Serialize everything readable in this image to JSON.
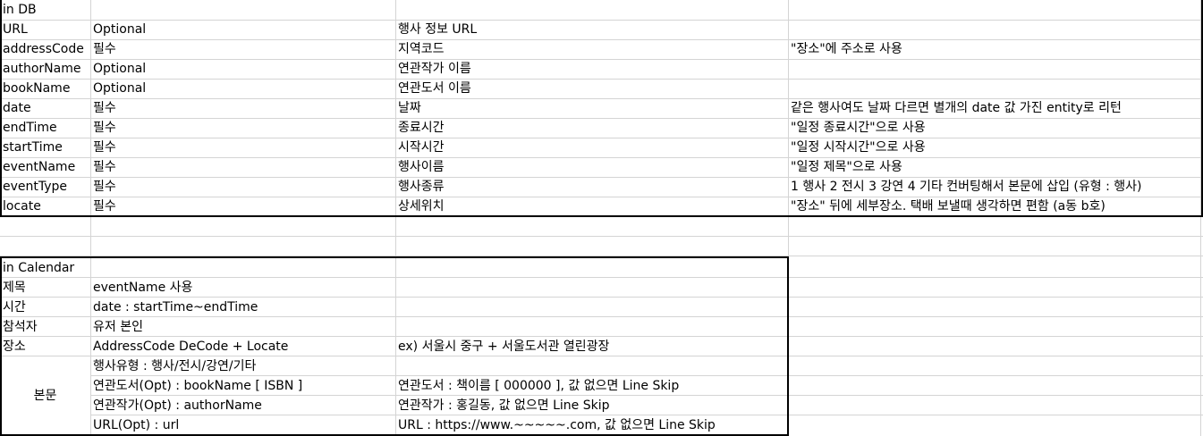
{
  "db_table": {
    "header": "in DB",
    "rows": [
      {
        "field": "URL",
        "required": "Optional",
        "desc": "행사 정보 URL",
        "note": ""
      },
      {
        "field": "addressCode",
        "required": "필수",
        "desc": "지역코드",
        "note": "\"장소\"에 주소로 사용"
      },
      {
        "field": "authorName",
        "required": "Optional",
        "desc": "연관작가 이름",
        "note": ""
      },
      {
        "field": "bookName",
        "required": "Optional",
        "desc": "연관도서 이름",
        "note": ""
      },
      {
        "field": "date",
        "required": "필수",
        "desc": "날짜",
        "note": "같은 행사여도 날짜 다르면 별개의 date 값 가진 entity로 리턴"
      },
      {
        "field": "endTime",
        "required": "필수",
        "desc": "종료시간",
        "note": "\"일정 종료시간\"으로 사용"
      },
      {
        "field": "startTime",
        "required": "필수",
        "desc": "시작시간",
        "note": "\"일정 시작시간\"으로 사용"
      },
      {
        "field": "eventName",
        "required": "필수",
        "desc": "행사이름",
        "note": "\"일정 제목\"으로 사용"
      },
      {
        "field": "eventType",
        "required": "필수",
        "desc": "행사종류",
        "note": "1 행사 2 전시 3 강연 4 기타 컨버팅해서 본문에 삽입 (유형 : 행사)"
      },
      {
        "field": "locate",
        "required": "필수",
        "desc": "상세위치",
        "note": "\"장소\" 뒤에 세부장소. 택배 보낼때 생각하면 편함 (a동 b호)"
      }
    ]
  },
  "calendar_table": {
    "header": "in Calendar",
    "rows": [
      {
        "label": "제목",
        "value": "eventName 사용",
        "example": ""
      },
      {
        "label": "시간",
        "value": "date : startTime~endTime",
        "example": ""
      },
      {
        "label": "참석자",
        "value": "유저 본인",
        "example": ""
      },
      {
        "label": "장소",
        "value": "AddressCode DeCode + Locate",
        "example": "ex) 서울시 중구 + 서울도서관 열린광장"
      }
    ],
    "body_label": "본문",
    "body_rows": [
      {
        "value": "행사유형 : 행사/전시/강연/기타",
        "example": ""
      },
      {
        "value": "연관도서(Opt) : bookName [ ISBN ]",
        "example": "연관도서 : 책이름 [ 000000 ], 값 없으면 Line Skip"
      },
      {
        "value": "연관작가(Opt) : authorName",
        "example": "연관작가 : 홍길동, 값 없으면 Line Skip"
      },
      {
        "value": "URL(Opt) : url",
        "example": "URL : https://www.~~~~~.com, 값 없으면 Line Skip"
      }
    ]
  }
}
